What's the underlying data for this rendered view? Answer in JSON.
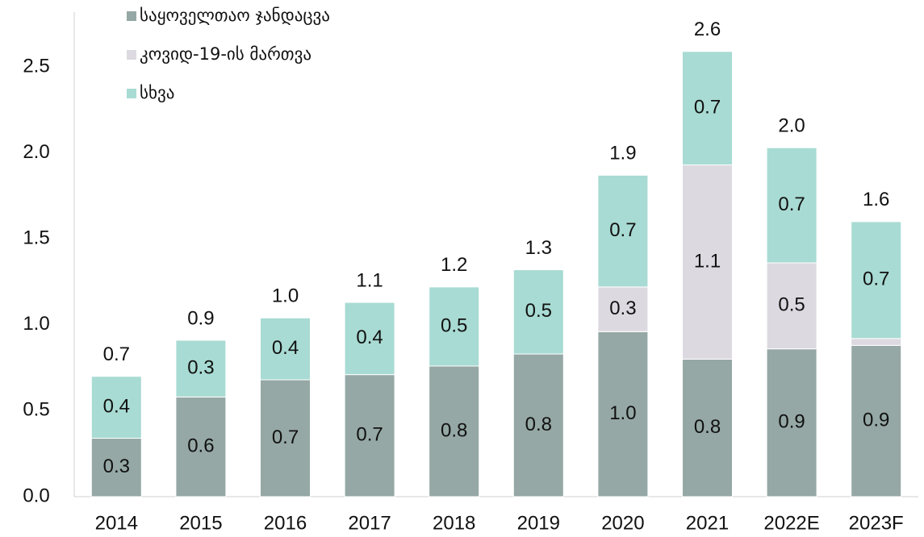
{
  "chart_data": {
    "type": "stacked_bar",
    "categories": [
      "2014",
      "2015",
      "2016",
      "2017",
      "2018",
      "2019",
      "2020",
      "2021",
      "2022E",
      "2023F"
    ],
    "series": [
      {
        "name": "საყოველთაო ჯანდაცვა",
        "color": "#95a8a5",
        "values": [
          0.34,
          0.58,
          0.68,
          0.71,
          0.76,
          0.83,
          0.96,
          0.8,
          0.86,
          0.88
        ],
        "value_labels": [
          "0.3",
          "0.6",
          "0.7",
          "0.7",
          "0.8",
          "0.8",
          "1.0",
          "0.8",
          "0.9",
          "0.9"
        ]
      },
      {
        "name": "კოვიდ-19-ის მართვა",
        "color": "#dcd9e0",
        "values": [
          0,
          0,
          0,
          0,
          0,
          0,
          0.26,
          1.13,
          0.5,
          0.04
        ],
        "value_labels": [
          null,
          null,
          null,
          null,
          null,
          null,
          "0.3",
          "1.1",
          "0.5",
          null
        ]
      },
      {
        "name": "სხვა",
        "color": "#a8dbd3",
        "values": [
          0.36,
          0.33,
          0.36,
          0.42,
          0.46,
          0.49,
          0.65,
          0.66,
          0.67,
          0.68
        ],
        "value_labels": [
          "0.4",
          "0.3",
          "0.4",
          "0.4",
          "0.5",
          "0.5",
          "0.7",
          "0.7",
          "0.7",
          "0.7"
        ]
      }
    ],
    "total_labels": [
      "0.7",
      "0.9",
      "1.0",
      "1.1",
      "1.2",
      "1.3",
      "1.9",
      "2.6",
      "2.0",
      "1.6"
    ],
    "ylim": [
      0,
      2.5
    ],
    "yticks": [
      {
        "value": 0,
        "label": "0.0"
      },
      0.5,
      {
        "value": 1,
        "label": "1.0"
      },
      1.5,
      {
        "value": 2,
        "label": "2.0"
      },
      2.5
    ],
    "grid": false,
    "legend": "top-left"
  }
}
